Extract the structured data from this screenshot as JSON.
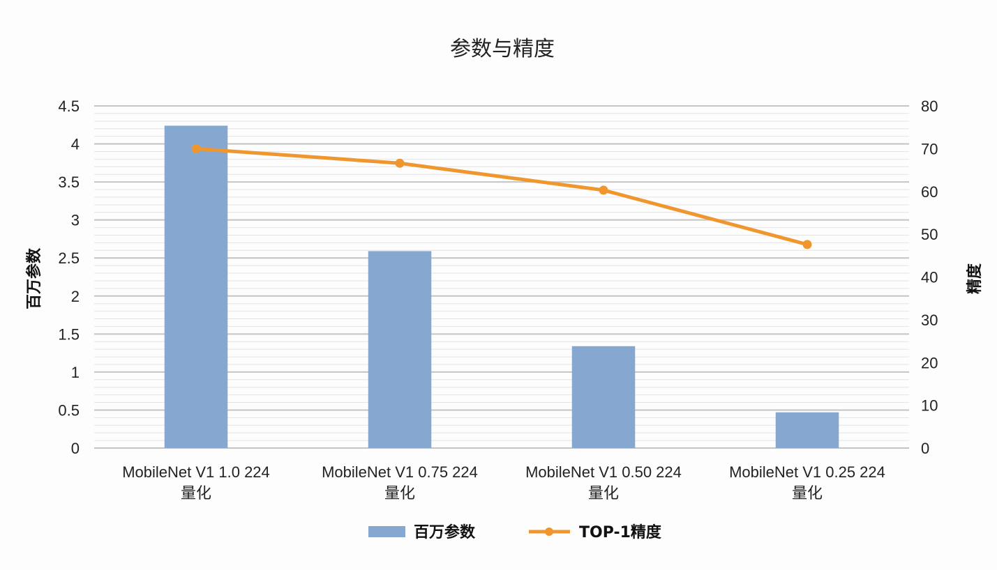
{
  "chart_data": {
    "type": "bar",
    "title": "参数与精度",
    "categories": [
      [
        "MobileNet V1 1.0 224",
        "量化"
      ],
      [
        "MobileNet V1 0.75 224",
        "量化"
      ],
      [
        "MobileNet V1 0.50 224",
        "量化"
      ],
      [
        "MobileNet V1 0.25 224",
        "量化"
      ]
    ],
    "series": [
      {
        "name": "百万参数",
        "type": "bar",
        "axis": "left",
        "color": "#86a8d0",
        "values": [
          4.24,
          2.59,
          1.34,
          0.47
        ]
      },
      {
        "name": "TOP-1精度",
        "type": "line",
        "axis": "right",
        "color": "#f0962e",
        "values": [
          70.0,
          66.6,
          60.3,
          47.6
        ]
      }
    ],
    "ylabel": "百万参数",
    "ylim": [
      0,
      4.5
    ],
    "yticks": [
      "0",
      "0.5",
      "1",
      "1.5",
      "2",
      "2.5",
      "3",
      "3.5",
      "4",
      "4.5"
    ],
    "y2label": "精度",
    "y2lim": [
      0,
      80
    ],
    "y2ticks": [
      "0",
      "10",
      "20",
      "30",
      "40",
      "50",
      "60",
      "70",
      "80"
    ],
    "grid": true,
    "legend": "bottom"
  }
}
